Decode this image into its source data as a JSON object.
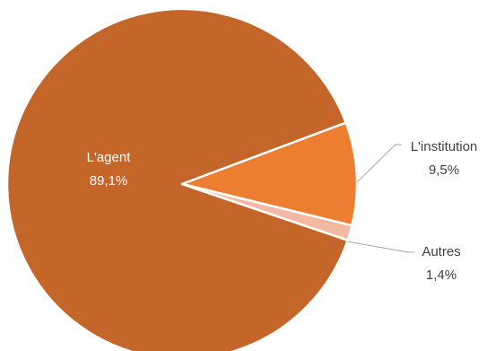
{
  "chart_data": {
    "type": "pie",
    "slices": [
      {
        "label": "L'agent",
        "value_label": "89,1%",
        "value": 89.1,
        "color": "#C4662A"
      },
      {
        "label": "L'institution",
        "value_label": "9,5%",
        "value": 9.5,
        "color": "#ED7D31"
      },
      {
        "label": "Autres",
        "value_label": "1,4%",
        "value": 1.4,
        "color": "#F4B9A3"
      }
    ],
    "label_colors": {
      "inside": "#FFFFFF",
      "outside": "#404040"
    },
    "leader_line_color": "#A6A6A6",
    "border_color": "#FFFFFF"
  }
}
